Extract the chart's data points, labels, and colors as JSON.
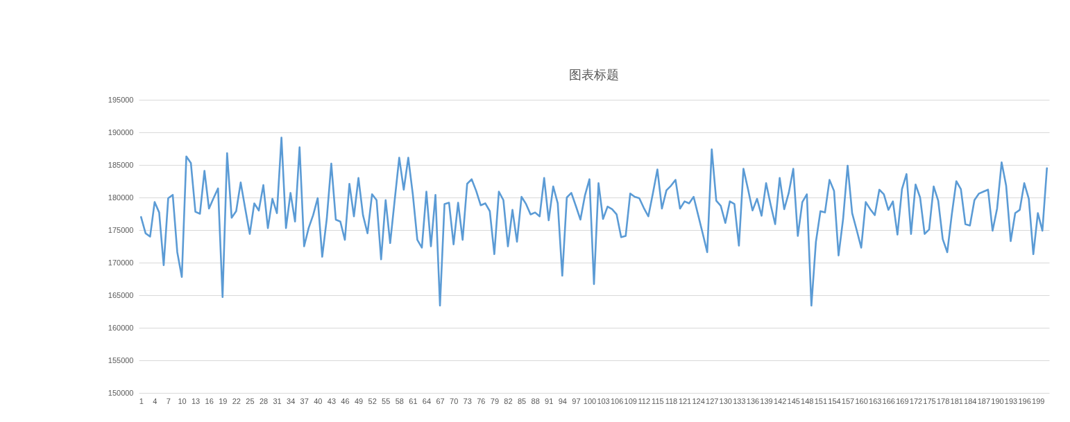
{
  "chart_data": {
    "type": "line",
    "title": "图表标题",
    "categories": [
      "1",
      null,
      null,
      "4",
      null,
      null,
      "7",
      null,
      null,
      "10",
      null,
      null,
      "13",
      null,
      null,
      "16",
      null,
      null,
      "19",
      null,
      null,
      "22",
      null,
      null,
      "25",
      null,
      null,
      "28",
      null,
      null,
      "31",
      null,
      null,
      "34",
      null,
      null,
      "37",
      null,
      null,
      "40",
      null,
      null,
      "43",
      null,
      null,
      "46",
      null,
      null,
      "49",
      null,
      null,
      "52",
      null,
      null,
      "55",
      null,
      null,
      "58",
      null,
      null,
      "61",
      null,
      null,
      "64",
      null,
      null,
      "67",
      null,
      null,
      "70",
      null,
      null,
      "73",
      null,
      null,
      "76",
      null,
      null,
      "79",
      null,
      null,
      "82",
      null,
      null,
      "85",
      null,
      null,
      "88",
      null,
      null,
      "91",
      null,
      null,
      "94",
      null,
      null,
      "97",
      null,
      null,
      "100",
      null,
      null,
      "103",
      null,
      null,
      "106",
      null,
      null,
      "109",
      null,
      null,
      "112",
      null,
      null,
      "115",
      null,
      null,
      "118",
      null,
      null,
      "121",
      null,
      null,
      "124",
      null,
      null,
      "127",
      null,
      null,
      "130",
      null,
      null,
      "133",
      null,
      null,
      "136",
      null,
      null,
      "139",
      null,
      null,
      "142",
      null,
      null,
      "145",
      null,
      null,
      "148",
      null,
      null,
      "151",
      null,
      null,
      "154",
      null,
      null,
      "157",
      null,
      null,
      "160",
      null,
      null,
      "163",
      null,
      null,
      "166",
      null,
      null,
      "169",
      null,
      null,
      "172",
      null,
      null,
      "175",
      null,
      null,
      "178",
      null,
      null,
      "181",
      null,
      null,
      "184",
      null,
      null,
      "187",
      null,
      null,
      "190",
      null,
      null,
      "193",
      null,
      null,
      "196",
      null,
      null,
      "199",
      null,
      null
    ],
    "series": [
      {
        "color": "#5b9bd5",
        "values": [
          177000,
          174500,
          174000,
          179300,
          177700,
          169600,
          179900,
          180400,
          171600,
          167800,
          186300,
          185300,
          177800,
          177500,
          184100,
          178300,
          179900,
          181400,
          164700,
          186800,
          176900,
          177900,
          182300,
          178300,
          174400,
          179100,
          178000,
          181900,
          175300,
          179800,
          177600,
          189200,
          175300,
          180700,
          176300,
          187700,
          172500,
          175300,
          177300,
          179900,
          170900,
          176700,
          185200,
          176600,
          176300,
          173500,
          182100,
          177100,
          183000,
          177300,
          174500,
          180500,
          179600,
          170500,
          179600,
          173000,
          179600,
          186100,
          181200,
          186100,
          180500,
          173500,
          172300,
          180900,
          172500,
          180400,
          163400,
          179000,
          179200,
          172800,
          179200,
          173500,
          182100,
          182800,
          181000,
          178800,
          179100,
          177900,
          171300,
          180900,
          179600,
          172500,
          178100,
          173200,
          180100,
          179000,
          177400,
          177700,
          177100,
          183000,
          176500,
          181700,
          179100,
          168000,
          180000,
          180700,
          178700,
          176600,
          180300,
          182800,
          166700,
          182200,
          176700,
          178600,
          178200,
          177400,
          173900,
          174100,
          180600,
          180100,
          179900,
          178400,
          177100,
          180600,
          184300,
          178300,
          181100,
          181800,
          182700,
          178300,
          179400,
          179100,
          180100,
          177300,
          174500,
          171600,
          187400,
          179500,
          178700,
          176100,
          179400,
          179000,
          172600,
          184400,
          181300,
          178000,
          179800,
          177200,
          182200,
          178900,
          175900,
          183000,
          178200,
          180700,
          184400,
          174100,
          179300,
          180500,
          163400,
          173200,
          177900,
          177700,
          182700,
          181000,
          171100,
          176700,
          184900,
          177600,
          175000,
          172300,
          179300,
          178200,
          177300,
          181200,
          180500,
          178100,
          179400,
          174300,
          181300,
          183600,
          174400,
          182000,
          180000,
          174400,
          175100,
          181700,
          179500,
          173600,
          171600,
          177400,
          182500,
          181300,
          175900,
          175700,
          179600,
          180600,
          180900,
          181200,
          174900,
          178300,
          185400,
          181800,
          173300,
          177600,
          178100,
          182200,
          179800,
          171300,
          177600,
          174900,
          184500
        ]
      }
    ],
    "ylim": [
      150000,
      195000
    ],
    "yticks": [
      150000,
      155000,
      160000,
      165000,
      170000,
      175000,
      180000,
      185000,
      190000,
      195000
    ],
    "grid": "y",
    "marker": "none",
    "line_style": "solid"
  }
}
